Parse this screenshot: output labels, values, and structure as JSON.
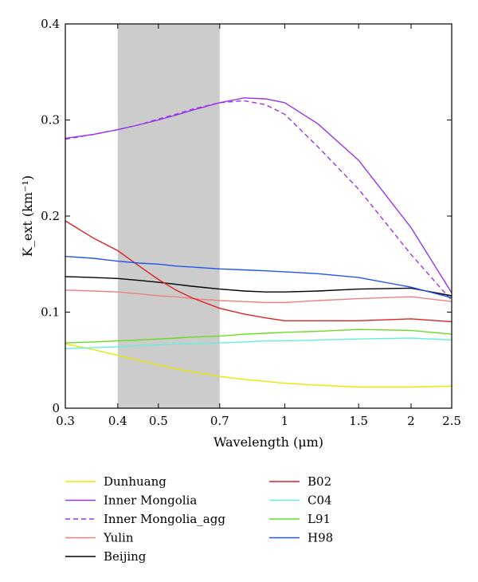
{
  "chart_data": {
    "type": "line",
    "xlabel": "Wavelength (μm)",
    "ylabel": "K_ext (km⁻¹)",
    "xscale": "log",
    "xlim": [
      0.3,
      2.5
    ],
    "ylim": [
      0,
      0.4
    ],
    "xticks": [
      {
        "value": 0.3,
        "label": "0.3"
      },
      {
        "value": 0.4,
        "label": "0.4"
      },
      {
        "value": 0.5,
        "label": "0.5"
      },
      {
        "value": 0.7,
        "label": "0.7"
      },
      {
        "value": 1.0,
        "label": "1"
      },
      {
        "value": 1.5,
        "label": "1.5"
      },
      {
        "value": 2.0,
        "label": "2"
      },
      {
        "value": 2.5,
        "label": "2.5"
      }
    ],
    "yticks": [
      {
        "value": 0,
        "label": "0"
      },
      {
        "value": 0.1,
        "label": "0.1"
      },
      {
        "value": 0.2,
        "label": "0.2"
      },
      {
        "value": 0.3,
        "label": "0.3"
      },
      {
        "value": 0.4,
        "label": "0.4"
      }
    ],
    "shaded_band": {
      "x_from": 0.4,
      "x_to": 0.7,
      "color": "#cccccc"
    },
    "grid": false,
    "legend_placement": "below",
    "x": [
      0.3,
      0.35,
      0.4,
      0.45,
      0.5,
      0.55,
      0.6,
      0.7,
      0.8,
      0.9,
      1.0,
      1.2,
      1.5,
      2.0,
      2.5
    ],
    "series": [
      {
        "name": "Dunhuang",
        "color": "#e8e800",
        "dash": false,
        "values": [
          0.067,
          0.061,
          0.055,
          0.05,
          0.045,
          0.041,
          0.038,
          0.033,
          0.03,
          0.028,
          0.026,
          0.024,
          0.022,
          0.022,
          0.023
        ]
      },
      {
        "name": "Inner Mongolia",
        "color": "#9933ee",
        "dash": false,
        "values": [
          0.281,
          0.285,
          0.29,
          0.295,
          0.3,
          0.305,
          0.31,
          0.318,
          0.323,
          0.322,
          0.318,
          0.296,
          0.258,
          0.188,
          0.12
        ]
      },
      {
        "name": "Inner Mongolia_agg",
        "color": "#9933ee",
        "dash": true,
        "values": [
          0.28,
          0.285,
          0.29,
          0.295,
          0.301,
          0.306,
          0.311,
          0.318,
          0.32,
          0.316,
          0.306,
          0.272,
          0.228,
          0.16,
          0.112
        ]
      },
      {
        "name": "Yulin",
        "color": "#f08080",
        "dash": false,
        "values": [
          0.123,
          0.122,
          0.121,
          0.119,
          0.117,
          0.116,
          0.114,
          0.112,
          0.111,
          0.11,
          0.11,
          0.112,
          0.114,
          0.116,
          0.111
        ]
      },
      {
        "name": "Beijing",
        "color": "#000000",
        "dash": false,
        "values": [
          0.137,
          0.136,
          0.135,
          0.133,
          0.131,
          0.129,
          0.127,
          0.124,
          0.122,
          0.121,
          0.121,
          0.122,
          0.124,
          0.125,
          0.117
        ]
      },
      {
        "name": "B02",
        "color": "#dd2222",
        "dash": false,
        "values": [
          0.195,
          0.177,
          0.164,
          0.148,
          0.134,
          0.123,
          0.115,
          0.104,
          0.098,
          0.094,
          0.091,
          0.091,
          0.091,
          0.093,
          0.09
        ]
      },
      {
        "name": "C04",
        "color": "#66eedd",
        "dash": false,
        "values": [
          0.062,
          0.063,
          0.064,
          0.065,
          0.066,
          0.067,
          0.067,
          0.068,
          0.069,
          0.07,
          0.07,
          0.071,
          0.072,
          0.073,
          0.071
        ]
      },
      {
        "name": "L91",
        "color": "#66dd22",
        "dash": false,
        "values": [
          0.068,
          0.069,
          0.07,
          0.071,
          0.072,
          0.073,
          0.074,
          0.075,
          0.077,
          0.078,
          0.079,
          0.08,
          0.082,
          0.081,
          0.077
        ]
      },
      {
        "name": "H98",
        "color": "#2255ee",
        "dash": false,
        "values": [
          0.158,
          0.156,
          0.153,
          0.151,
          0.15,
          0.148,
          0.147,
          0.145,
          0.144,
          0.143,
          0.142,
          0.14,
          0.136,
          0.126,
          0.115
        ]
      }
    ]
  }
}
